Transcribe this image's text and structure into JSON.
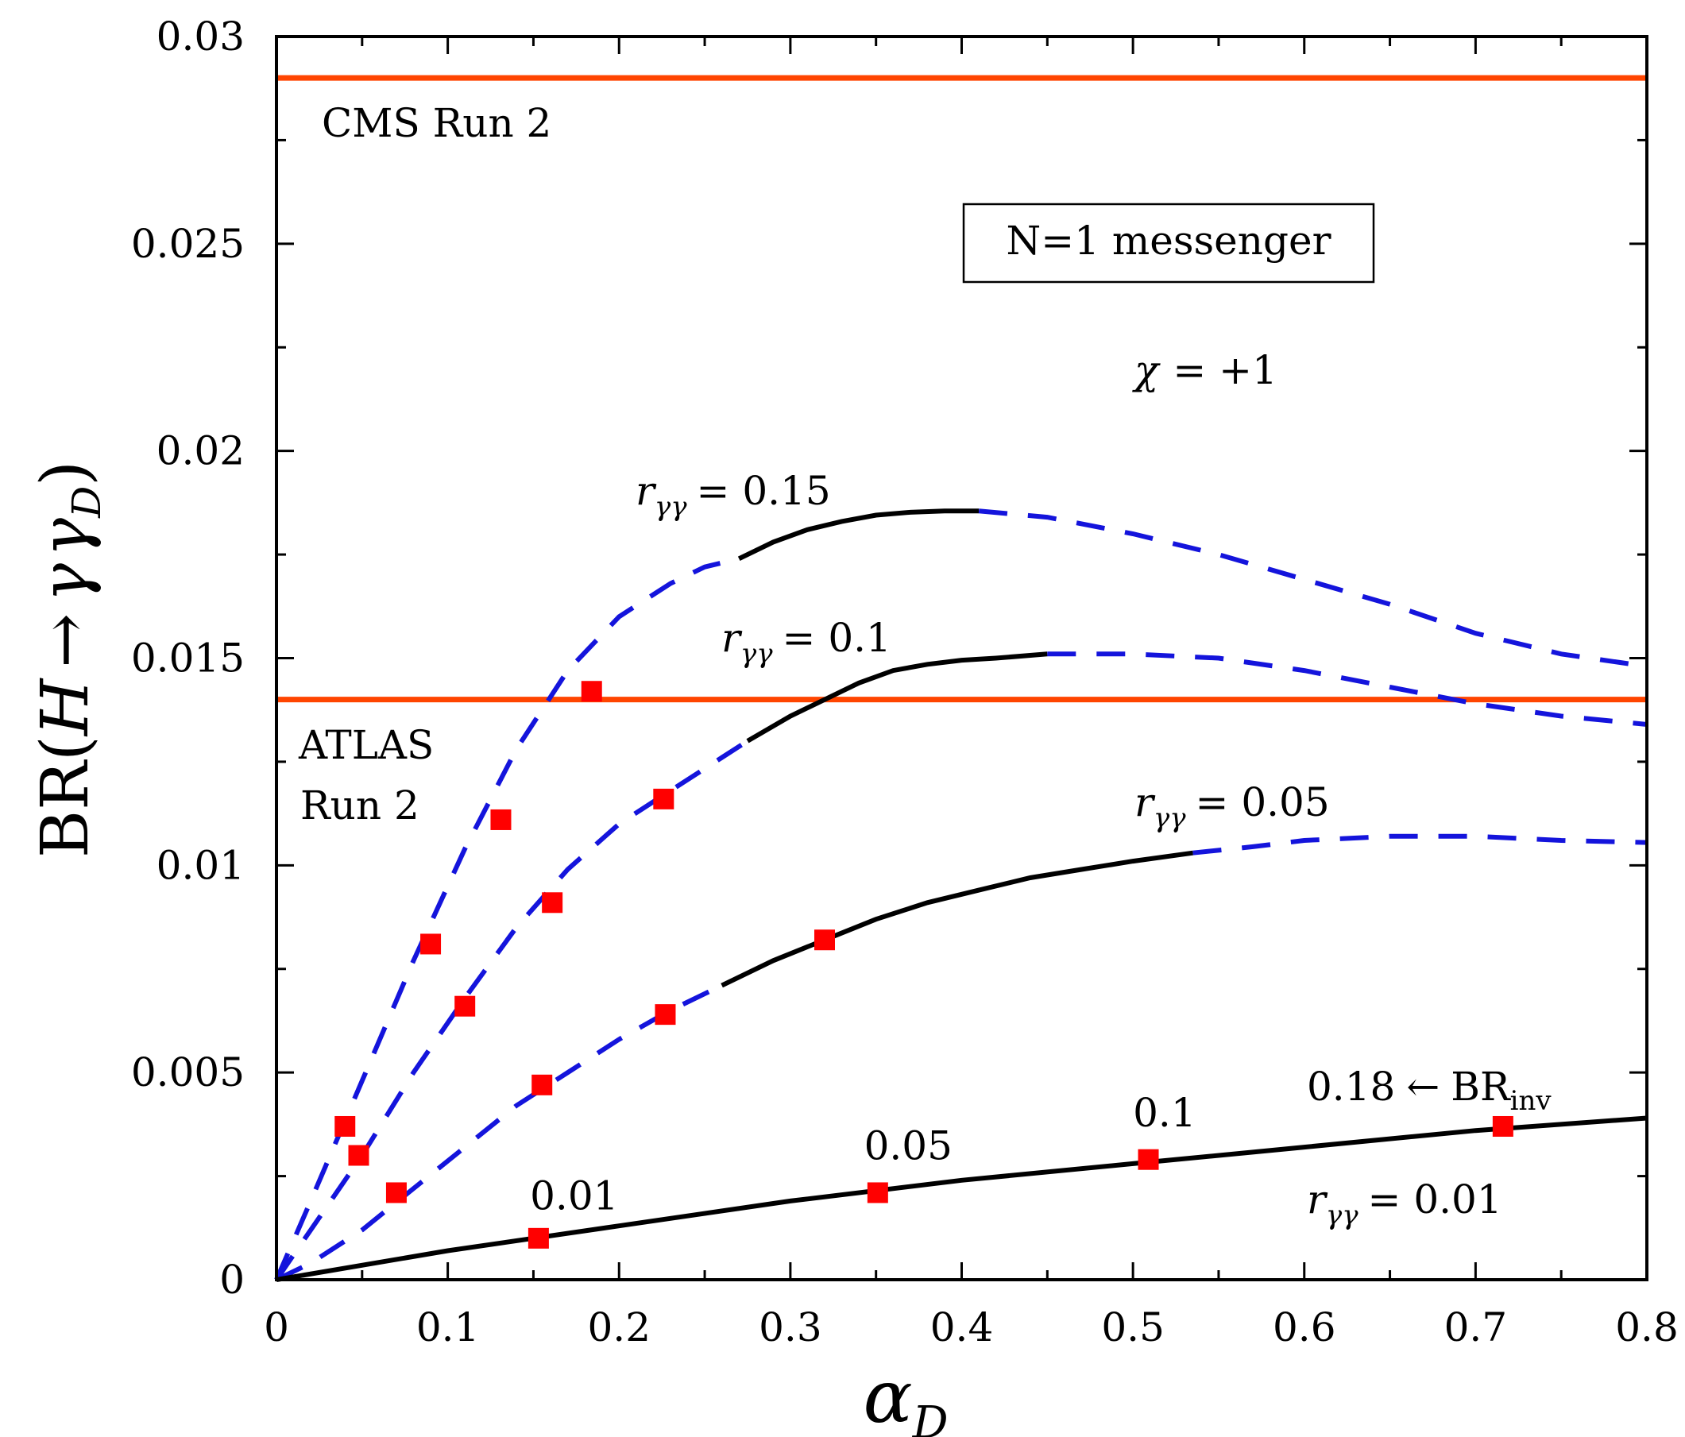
{
  "chart_data": {
    "type": "line",
    "xlabel": "α_D",
    "ylabel": "BR(H → γ γ_D)",
    "ylabel_parts": {
      "prefix": "BR(",
      "var_h": "H",
      "arrow": "→",
      "var_g": "γ",
      "var_gd": "γ",
      "sub_d": "D",
      "suffix": ")"
    },
    "xlabel_parts": {
      "symbol": "α",
      "sub": "D"
    },
    "xlim": [
      0,
      0.8
    ],
    "ylim": [
      0,
      0.03
    ],
    "x_ticks": [
      0,
      0.1,
      0.2,
      0.3,
      0.4,
      0.5,
      0.6,
      0.7,
      0.8
    ],
    "x_tick_labels": [
      "0",
      "0.1",
      "0.2",
      "0.3",
      "0.4",
      "0.5",
      "0.6",
      "0.7",
      "0.8"
    ],
    "y_ticks": [
      0,
      0.005,
      0.01,
      0.015,
      0.02,
      0.025,
      0.03
    ],
    "y_tick_labels": [
      "0",
      "0.005",
      "0.01",
      "0.015",
      "0.02",
      "0.025",
      "0.03"
    ],
    "limits": [
      {
        "name": "CMS Run 2",
        "value": 0.029,
        "color": "#ff4500",
        "label_lines": [
          "CMS Run 2"
        ]
      },
      {
        "name": "ATLAS Run 2",
        "value": 0.014,
        "color": "#ff4500",
        "label_lines": [
          "ATLAS",
          "Run 2"
        ]
      }
    ],
    "legend_box": "N=1 messenger",
    "chi_label": {
      "symbol": "χ",
      "rest": "= +1"
    },
    "series": [
      {
        "name": "r_γγ = 0.15",
        "label": {
          "r": "r",
          "sub": "γγ",
          "eq": "= 0.15"
        },
        "solid_range": [
          0.27,
          0.41
        ],
        "x": [
          0,
          0.02,
          0.05,
          0.08,
          0.11,
          0.14,
          0.17,
          0.2,
          0.23,
          0.25,
          0.27,
          0.29,
          0.31,
          0.33,
          0.35,
          0.37,
          0.39,
          0.41,
          0.45,
          0.5,
          0.55,
          0.6,
          0.65,
          0.7,
          0.75,
          0.8
        ],
        "y": [
          0,
          0.0019,
          0.0048,
          0.0077,
          0.0104,
          0.0128,
          0.0147,
          0.016,
          0.0168,
          0.0172,
          0.0174,
          0.0178,
          0.0181,
          0.0183,
          0.01845,
          0.01852,
          0.01855,
          0.01855,
          0.0184,
          0.018,
          0.0175,
          0.0169,
          0.0163,
          0.0156,
          0.0151,
          0.0148
        ]
      },
      {
        "name": "r_γγ = 0.1",
        "label": {
          "r": "r",
          "sub": "γγ",
          "eq": "= 0.1"
        },
        "solid_range": [
          0.275,
          0.45
        ],
        "x": [
          0,
          0.02,
          0.05,
          0.08,
          0.11,
          0.14,
          0.17,
          0.2,
          0.23,
          0.26,
          0.275,
          0.3,
          0.32,
          0.34,
          0.36,
          0.38,
          0.4,
          0.42,
          0.45,
          0.5,
          0.55,
          0.6,
          0.65,
          0.7,
          0.75,
          0.8
        ],
        "y": [
          0,
          0.0012,
          0.003,
          0.005,
          0.0068,
          0.0085,
          0.0099,
          0.011,
          0.0118,
          0.0126,
          0.013,
          0.0136,
          0.014,
          0.0144,
          0.0147,
          0.01485,
          0.01495,
          0.015,
          0.0151,
          0.0151,
          0.015,
          0.0147,
          0.0143,
          0.0139,
          0.0136,
          0.0134
        ]
      },
      {
        "name": "r_γγ = 0.05",
        "label": {
          "r": "r",
          "sub": "γγ",
          "eq": "= 0.05"
        },
        "solid_range": [
          0.26,
          0.535
        ],
        "x": [
          0,
          0.02,
          0.05,
          0.08,
          0.11,
          0.14,
          0.17,
          0.2,
          0.23,
          0.26,
          0.29,
          0.32,
          0.35,
          0.38,
          0.41,
          0.44,
          0.47,
          0.5,
          0.535,
          0.57,
          0.6,
          0.65,
          0.7,
          0.75,
          0.8
        ],
        "y": [
          0,
          0.0004,
          0.0012,
          0.0022,
          0.0032,
          0.0042,
          0.005,
          0.0058,
          0.0065,
          0.0071,
          0.0077,
          0.0082,
          0.0087,
          0.0091,
          0.0094,
          0.0097,
          0.0099,
          0.0101,
          0.0103,
          0.01045,
          0.0106,
          0.0107,
          0.0107,
          0.0106,
          0.01055
        ]
      },
      {
        "name": "r_γγ = 0.01",
        "label": {
          "r": "r",
          "sub": "γγ",
          "eq": "= 0.01"
        },
        "solid_range": [
          0,
          0.8
        ],
        "x": [
          0,
          0.1,
          0.2,
          0.3,
          0.4,
          0.5,
          0.6,
          0.7,
          0.8
        ],
        "y": [
          0,
          0.0007,
          0.0013,
          0.0019,
          0.0024,
          0.0028,
          0.0032,
          0.0036,
          0.0039
        ]
      }
    ],
    "markers": [
      {
        "x": 0.04,
        "y": 0.0037
      },
      {
        "x": 0.048,
        "y": 0.003
      },
      {
        "x": 0.07,
        "y": 0.0021
      },
      {
        "x": 0.09,
        "y": 0.0081
      },
      {
        "x": 0.11,
        "y": 0.0066
      },
      {
        "x": 0.131,
        "y": 0.0111
      },
      {
        "x": 0.155,
        "y": 0.0047
      },
      {
        "x": 0.161,
        "y": 0.0091
      },
      {
        "x": 0.184,
        "y": 0.0142
      },
      {
        "x": 0.226,
        "y": 0.0116
      },
      {
        "x": 0.227,
        "y": 0.0064
      },
      {
        "x": 0.32,
        "y": 0.0082
      },
      {
        "x": 0.153,
        "y": 0.001
      },
      {
        "x": 0.351,
        "y": 0.0021
      },
      {
        "x": 0.509,
        "y": 0.0029
      },
      {
        "x": 0.716,
        "y": 0.0037
      }
    ],
    "br_inv_labels": [
      {
        "text": "0.01",
        "x": 0.148,
        "y": 0.0017
      },
      {
        "text": "0.05",
        "x": 0.343,
        "y": 0.0029
      },
      {
        "text": "0.1",
        "x": 0.5,
        "y": 0.0037
      }
    ],
    "br_inv_annotation": {
      "value": "0.18",
      "arrow": "←",
      "br": "BR",
      "sub": "inv"
    },
    "colors": {
      "limit": "#ff4500",
      "solid": "#000000",
      "dashed": "#1414dc",
      "marker": "#ff0000"
    }
  }
}
